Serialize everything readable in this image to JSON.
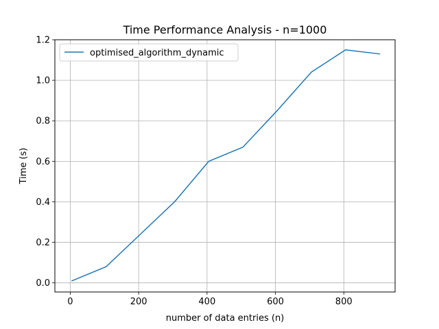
{
  "chart_data": {
    "type": "line",
    "title": "Time Performance Analysis - n=1000",
    "xlabel": "number of data entries (n)",
    "ylabel": "Time (s)",
    "xlim": [
      -45,
      950
    ],
    "ylim": [
      -0.045,
      1.2
    ],
    "xticks": [
      0,
      200,
      400,
      600,
      800
    ],
    "yticks": [
      0.0,
      0.2,
      0.4,
      0.6,
      0.8,
      1.0,
      1.2
    ],
    "xtick_labels": [
      "0",
      "200",
      "400",
      "600",
      "800"
    ],
    "ytick_labels": [
      "0.0",
      "0.2",
      "0.4",
      "0.6",
      "0.8",
      "1.0",
      "1.2"
    ],
    "grid": true,
    "legend_position": "top-left",
    "series": [
      {
        "name": "optimised_algorithm_dynamic",
        "color": "#1f77b4",
        "x": [
          5,
          105,
          205,
          305,
          405,
          505,
          605,
          705,
          805,
          905
        ],
        "y": [
          0.01,
          0.08,
          0.24,
          0.4,
          0.6,
          0.67,
          0.85,
          1.04,
          1.15,
          1.13
        ]
      }
    ]
  }
}
